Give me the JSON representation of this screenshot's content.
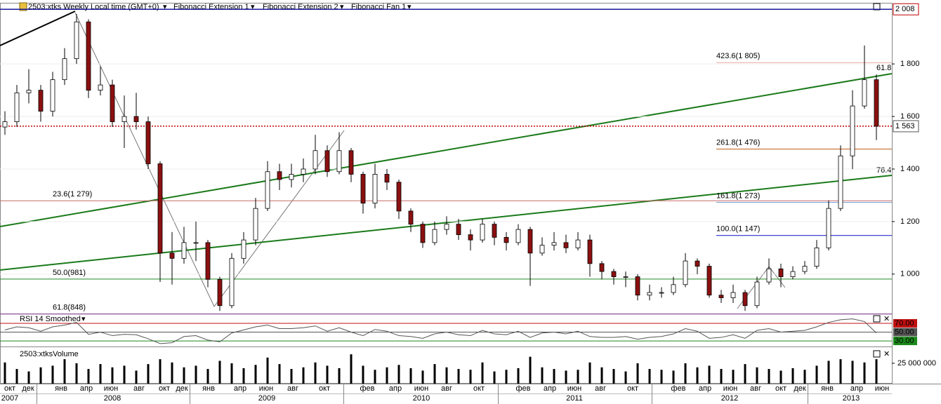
{
  "header": {
    "symbol": "2503:xtks Weekly Local time (GMT+0)",
    "studies": [
      "Fibonacci Extension 1",
      "Fibonacci Extension 2",
      "Fibonacci Fan 1"
    ]
  },
  "time_axis": {
    "months": [
      "окт",
      "дек",
      "янв",
      "апр",
      "июн",
      "авг",
      "окт",
      "дек",
      "янв",
      "апр",
      "июн",
      "авг",
      "окт",
      "фев",
      "апр",
      "июн",
      "авг",
      "окт",
      "фев",
      "апр",
      "июн",
      "авг",
      "окт",
      "фев",
      "апр",
      "июн",
      "авг",
      "окт",
      "дек",
      "янв",
      "апр",
      "июн"
    ],
    "years": [
      "2007",
      "2008",
      "2009",
      "2010",
      "2011",
      "2012",
      "2013"
    ]
  },
  "chart_data": [
    {
      "type": "candlestick",
      "up_color": "#ffffff",
      "down_color": "#8b1010",
      "open": [
        1560,
        1580,
        1690,
        1700,
        1620,
        1740,
        1820,
        1960,
        1700,
        1720,
        1580,
        1600,
        1580,
        1420,
        1080,
        1060,
        1120,
        1120,
        980,
        880,
        1060,
        1130,
        1250,
        1390,
        1360,
        1380,
        1400,
        1470,
        1390,
        1470,
        1380,
        1270,
        1380,
        1350,
        1240,
        1190,
        1120,
        1170,
        1190,
        1150,
        1130,
        1190,
        1140,
        1120,
        1170,
        1080,
        1110,
        1120,
        1100,
        1130,
        1040,
        1010,
        990,
        990,
        920,
        930,
        930,
        960,
        1050,
        1030,
        920,
        910,
        930,
        880,
        970,
        1020,
        990,
        1010,
        1030,
        1100,
        1250,
        1450,
        1640,
        1740
      ],
      "high": [
        1620,
        1720,
        1780,
        1720,
        1770,
        1860,
        1990,
        1970,
        1790,
        1740,
        1680,
        1690,
        1600,
        1430,
        1160,
        1180,
        1200,
        1130,
        990,
        1080,
        1160,
        1290,
        1430,
        1420,
        1420,
        1440,
        1530,
        1490,
        1540,
        1480,
        1390,
        1420,
        1400,
        1360,
        1250,
        1200,
        1200,
        1220,
        1210,
        1170,
        1210,
        1200,
        1160,
        1190,
        1180,
        1140,
        1160,
        1150,
        1160,
        1150,
        1050,
        1020,
        1010,
        1000,
        960,
        950,
        990,
        1080,
        1060,
        1040,
        940,
        960,
        940,
        990,
        1060,
        1040,
        1030,
        1050,
        1130,
        1280,
        1490,
        1700,
        1870,
        1760
      ],
      "low": [
        1530,
        1560,
        1650,
        1580,
        1600,
        1720,
        1800,
        1670,
        1680,
        1560,
        1480,
        1550,
        1400,
        970,
        960,
        1040,
        1050,
        950,
        860,
        870,
        1040,
        1110,
        1240,
        1320,
        1330,
        1350,
        1380,
        1370,
        1380,
        1350,
        1230,
        1250,
        1320,
        1210,
        1160,
        1100,
        1110,
        1150,
        1130,
        1090,
        1120,
        1110,
        1090,
        1110,
        955,
        1070,
        1090,
        1080,
        1090,
        990,
        980,
        960,
        950,
        900,
        900,
        910,
        920,
        950,
        1000,
        910,
        890,
        890,
        860,
        870,
        960,
        950,
        980,
        1000,
        1020,
        1090,
        1240,
        1400,
        1630,
        1510
      ],
      "close": [
        1580,
        1690,
        1700,
        1620,
        1740,
        1820,
        1960,
        1700,
        1720,
        1580,
        1600,
        1580,
        1420,
        1080,
        1060,
        1120,
        1120,
        980,
        880,
        1060,
        1130,
        1250,
        1390,
        1360,
        1380,
        1400,
        1470,
        1390,
        1470,
        1380,
        1270,
        1380,
        1350,
        1240,
        1190,
        1120,
        1170,
        1190,
        1150,
        1130,
        1190,
        1140,
        1120,
        1170,
        1080,
        1110,
        1120,
        1100,
        1130,
        1040,
        1010,
        990,
        990,
        920,
        930,
        930,
        960,
        1050,
        1030,
        920,
        910,
        930,
        880,
        970,
        1020,
        990,
        1010,
        1030,
        1100,
        1250,
        1450,
        1640,
        1740,
        1563
      ],
      "ylim": [
        850,
        2030
      ],
      "yticks": [
        {
          "value": 1000,
          "label": "1 000"
        },
        {
          "value": 1200,
          "label": "1 200"
        },
        {
          "value": 1400,
          "label": "1 400"
        },
        {
          "value": 1600,
          "label": "1 600"
        },
        {
          "value": 1800,
          "label": "1 800"
        }
      ],
      "high_line": {
        "value": 2008,
        "label": "2 008",
        "color": "#1a1a9a"
      },
      "last_price": {
        "value": 1563,
        "label": "1 563",
        "color": "#c00000"
      },
      "levels": [
        {
          "label": "423.6(1 805)",
          "value": 1805,
          "color": "#f0a8a8",
          "scope": "right"
        },
        {
          "label": "261.8(1 476)",
          "value": 1476,
          "color": "#c06020",
          "scope": "right"
        },
        {
          "label": "161.8(1 273)",
          "value": 1273,
          "color": "#7aa0d0",
          "scope": "right"
        },
        {
          "label": "100.0(1 147)",
          "value": 1147,
          "color": "#1010c0",
          "scope": "right"
        },
        {
          "label": "23.6(1 279)",
          "value": 1279,
          "color": "#c86a6a",
          "scope": "full"
        },
        {
          "label": "50.0(981)",
          "value": 981,
          "color": "#208a20",
          "scope": "full"
        },
        {
          "label": "61.8(848)",
          "value": 848,
          "color": "#8a40a0",
          "scope": "full"
        }
      ],
      "fan_labels": [
        "61.8",
        "76.4"
      ],
      "fan_color": "#1a7a1a"
    },
    {
      "type": "line",
      "title": "RSI 14 Smoothed",
      "color": "#555555",
      "values": [
        55,
        62,
        60,
        52,
        62,
        66,
        72,
        45,
        50,
        42,
        45,
        44,
        35,
        24,
        26,
        40,
        42,
        32,
        28,
        48,
        55,
        62,
        66,
        58,
        58,
        60,
        64,
        52,
        60,
        50,
        42,
        56,
        52,
        42,
        40,
        36,
        46,
        50,
        44,
        42,
        54,
        46,
        44,
        52,
        38,
        48,
        50,
        46,
        52,
        40,
        38,
        38,
        40,
        34,
        38,
        40,
        46,
        58,
        52,
        36,
        38,
        44,
        36,
        54,
        58,
        50,
        52,
        54,
        62,
        72,
        78,
        80,
        74,
        48
      ],
      "ylim": [
        19,
        89
      ],
      "yticks": [
        {
          "value": 30,
          "label": "30.00",
          "color": "#1a8a1a"
        },
        {
          "value": 50,
          "label": "50.00",
          "color": "#555555"
        },
        {
          "value": 70,
          "label": "70.00",
          "color": "#c01010"
        }
      ]
    },
    {
      "type": "bar",
      "title": "2503:xtksVolume",
      "color": "#000000",
      "values": [
        26000000.0,
        18000000.0,
        15000000.0,
        20000000.0,
        22000000.0,
        30000000.0,
        25000000.0,
        18000000.0,
        24000000.0,
        20000000.0,
        22000000.0,
        16000000.0,
        24000000.0,
        30000000.0,
        26000000.0,
        20000000.0,
        22000000.0,
        18000000.0,
        28000000.0,
        25000000.0,
        19000000.0,
        23000000.0,
        32000000.0,
        24000000.0,
        18000000.0,
        20000000.0,
        26000000.0,
        22000000.0,
        19000000.0,
        36000000.0,
        22000000.0,
        17000000.0,
        20000000.0,
        23000000.0,
        19000000.0,
        16000000.0,
        24000000.0,
        20000000.0,
        18000000.0,
        17000000.0,
        26000000.0,
        15000000.0,
        17000000.0,
        19000000.0,
        33000000.0,
        20000000.0,
        18000000.0,
        16000000.0,
        17000000.0,
        26000000.0,
        20000000.0,
        18000000.0,
        15000000.0,
        25000000.0,
        18000000.0,
        17000000.0,
        16000000.0,
        25000000.0,
        20000000.0,
        22000000.0,
        18000000.0,
        17000000.0,
        24000000.0,
        20000000.0,
        18000000.0,
        16000000.0,
        19000000.0,
        17000000.0,
        22000000.0,
        28000000.0,
        30000000.0,
        28000000.0,
        26000000.0,
        30000000.0
      ],
      "ylim": [
        0,
        43000000
      ],
      "yticks": [
        {
          "value": 25000000,
          "label": "25 000 000"
        }
      ]
    }
  ]
}
